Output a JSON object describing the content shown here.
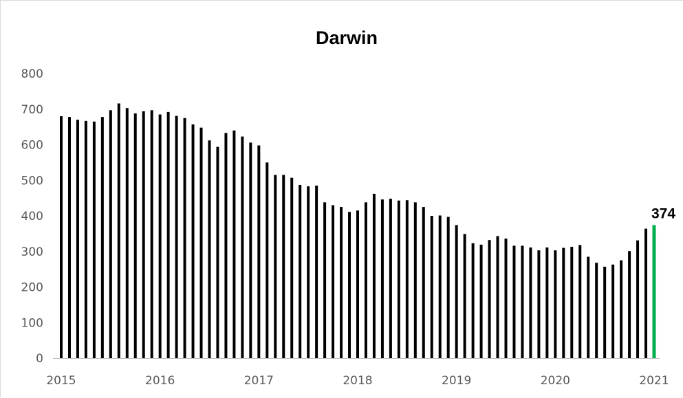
{
  "chart_data": {
    "type": "bar",
    "title": "Darwin",
    "xlabel": "",
    "ylabel": "",
    "ylim": [
      0,
      800
    ],
    "y_ticks": [
      "0",
      "100",
      "200",
      "300",
      "400",
      "500",
      "600",
      "700",
      "800"
    ],
    "x_ticks": [
      "2015",
      "2016",
      "2017",
      "2018",
      "2019",
      "2020",
      "2021"
    ],
    "x_range": [
      "2015-01",
      "2021-01"
    ],
    "grid": false,
    "legend": "none",
    "colors": {
      "bars": "#000000",
      "highlight": "#00b050",
      "axis": "#bfbfbf",
      "ticks": "#595959"
    },
    "months": [
      "2015-01",
      "2015-02",
      "2015-03",
      "2015-04",
      "2015-05",
      "2015-06",
      "2015-07",
      "2015-08",
      "2015-09",
      "2015-10",
      "2015-11",
      "2015-12",
      "2016-01",
      "2016-02",
      "2016-03",
      "2016-04",
      "2016-05",
      "2016-06",
      "2016-07",
      "2016-08",
      "2016-09",
      "2016-10",
      "2016-11",
      "2016-12",
      "2017-01",
      "2017-02",
      "2017-03",
      "2017-04",
      "2017-05",
      "2017-06",
      "2017-07",
      "2017-08",
      "2017-09",
      "2017-10",
      "2017-11",
      "2017-12",
      "2018-01",
      "2018-02",
      "2018-03",
      "2018-04",
      "2018-05",
      "2018-06",
      "2018-07",
      "2018-08",
      "2018-09",
      "2018-10",
      "2018-11",
      "2018-12",
      "2019-01",
      "2019-02",
      "2019-03",
      "2019-04",
      "2019-05",
      "2019-06",
      "2019-07",
      "2019-08",
      "2019-09",
      "2019-10",
      "2019-11",
      "2019-12",
      "2020-01",
      "2020-02",
      "2020-03",
      "2020-04",
      "2020-05",
      "2020-06",
      "2020-07",
      "2020-08",
      "2020-09",
      "2020-10",
      "2020-11",
      "2020-12",
      "2021-01"
    ],
    "values": [
      680,
      678,
      670,
      667,
      665,
      678,
      697,
      716,
      703,
      688,
      694,
      697,
      685,
      692,
      681,
      675,
      657,
      648,
      612,
      594,
      633,
      640,
      623,
      606,
      598,
      550,
      515,
      515,
      507,
      487,
      483,
      485,
      438,
      430,
      425,
      411,
      415,
      438,
      462,
      446,
      448,
      443,
      444,
      438,
      425,
      400,
      401,
      397,
      374,
      349,
      323,
      319,
      332,
      343,
      336,
      316,
      316,
      311,
      303,
      311,
      303,
      310,
      313,
      318,
      285,
      268,
      257,
      263,
      275,
      301,
      331,
      364,
      374
    ],
    "highlight_index": 72,
    "annotation": "374"
  }
}
